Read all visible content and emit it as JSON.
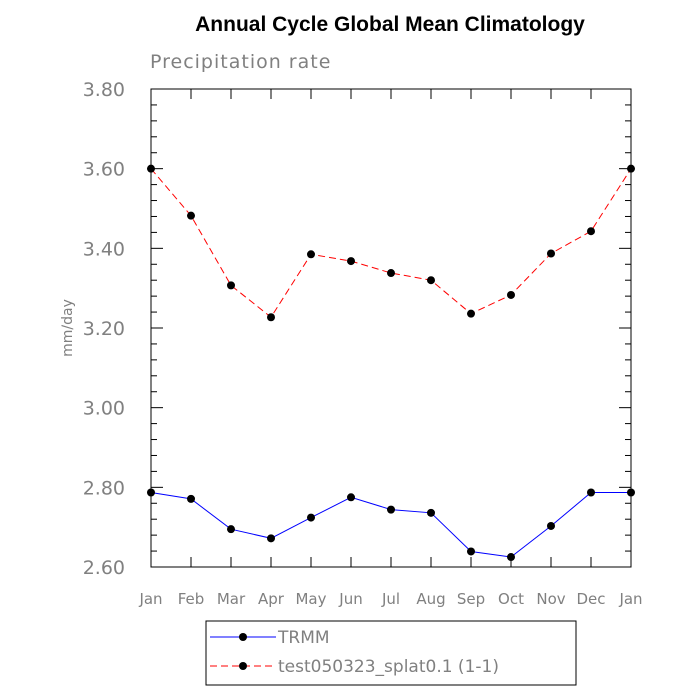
{
  "chart_data": {
    "type": "line",
    "title": "Annual Cycle Global Mean Climatology",
    "subtitle": "Precipitation rate",
    "ylabel": "mm/day",
    "xlabel": "",
    "categories": [
      "Jan",
      "Feb",
      "Mar",
      "Apr",
      "May",
      "Jun",
      "Jul",
      "Aug",
      "Sep",
      "Oct",
      "Nov",
      "Dec",
      "Jan"
    ],
    "ylim": [
      2.6,
      3.8
    ],
    "yticks": [
      "2.60",
      "2.80",
      "3.00",
      "3.20",
      "3.40",
      "3.60",
      "3.80"
    ],
    "series": [
      {
        "name": "TRMM",
        "color": "#0000ff",
        "line_style": "solid",
        "values": [
          2.787,
          2.771,
          2.695,
          2.672,
          2.724,
          2.775,
          2.744,
          2.736,
          2.639,
          2.625,
          2.703,
          2.787,
          2.787
        ]
      },
      {
        "name": "test050323_splat0.1 (1-1)",
        "color": "#ff0000",
        "line_style": "dashed",
        "values": [
          3.6,
          3.482,
          3.307,
          3.227,
          3.385,
          3.368,
          3.338,
          3.32,
          3.236,
          3.283,
          3.387,
          3.443,
          3.6
        ]
      }
    ],
    "grid": false,
    "legend_position": "bottom"
  }
}
